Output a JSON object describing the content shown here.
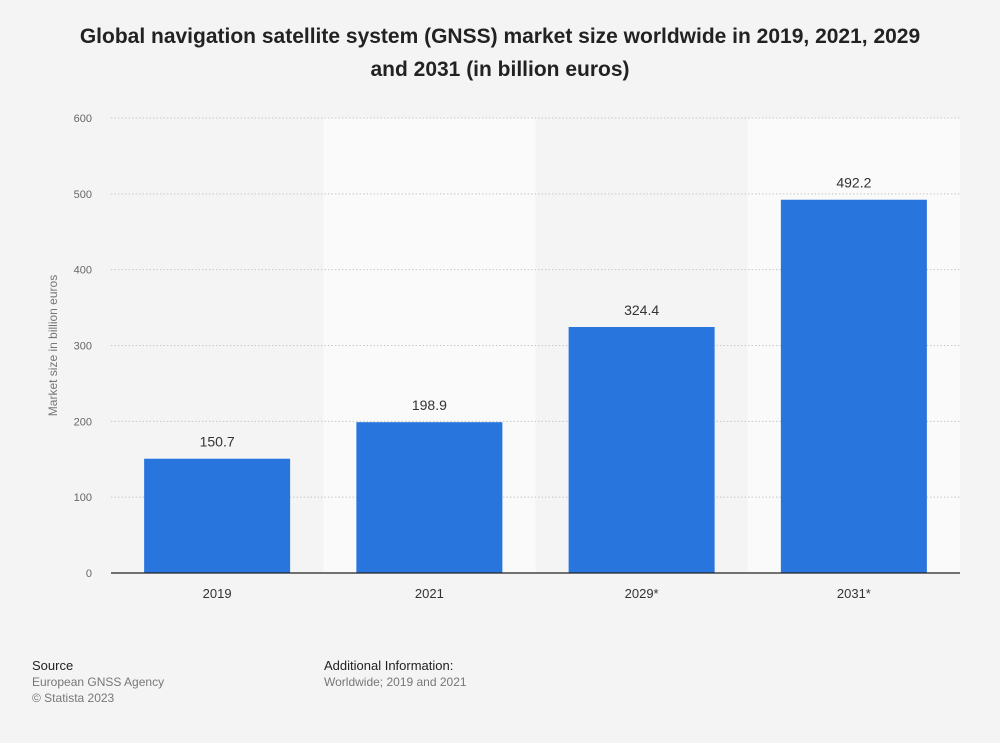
{
  "header": {
    "title_line1": "Global navigation satellite system (GNSS) market size worldwide in 2019, 2021, 2029",
    "title_line2": "and 2031 (in billion euros)"
  },
  "chart_data": {
    "type": "bar",
    "title": "Global navigation satellite system (GNSS) market size worldwide in 2019, 2021, 2029 and 2031 (in billion euros)",
    "categories": [
      "2019",
      "2021",
      "2029*",
      "2031*"
    ],
    "values": [
      150.7,
      198.9,
      324.4,
      492.2
    ],
    "value_labels": [
      "150.7",
      "198.9",
      "324.4",
      "492.2"
    ],
    "xlabel": "",
    "ylabel": "Market size in billion euros",
    "ylim": [
      0,
      600
    ],
    "yticks": [
      0,
      100,
      200,
      300,
      400,
      500,
      600
    ],
    "grid": true,
    "bar_color": "#2876dd"
  },
  "footer": {
    "source_heading": "Source",
    "source_name": "European GNSS Agency",
    "copyright": "© Statista 2023",
    "additional_heading": "Additional Information:",
    "additional_text": "Worldwide; 2019 and 2021"
  }
}
